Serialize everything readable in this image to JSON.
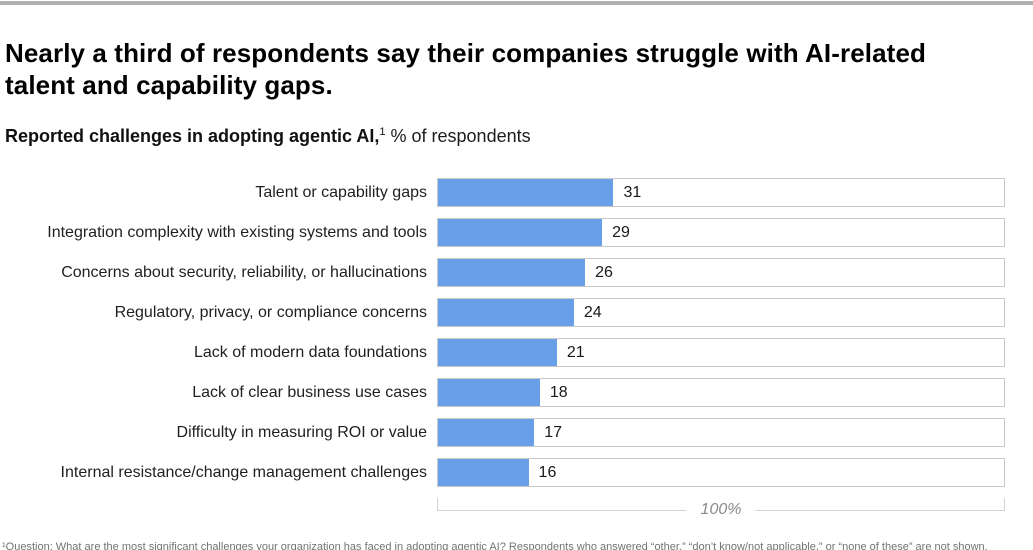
{
  "page": {
    "title": "Nearly a third of respondents say their companies struggle with AI-related talent and capability gaps.",
    "subtitle_bold": "Reported challenges in adopting agentic AI,",
    "subtitle_sup": "1",
    "subtitle_rest": "% of respondents",
    "footnote": "¹Question: What are the most significant challenges your organization has faced in adopting agentic AI? Respondents who answered “other,” “don’t know/not applicable,” or “none of these” are not shown."
  },
  "chart_data": {
    "type": "bar",
    "orientation": "horizontal",
    "title": "Reported challenges in adopting agentic AI, % of respondents",
    "categories": [
      "Talent or capability gaps",
      "Integration complexity with existing systems and tools",
      "Concerns about security, reliability, or hallucinations",
      "Regulatory, privacy, or compliance concerns",
      "Lack of modern data foundations",
      "Lack of clear business use cases",
      "Difficulty in measuring ROI or value",
      "Internal resistance/change management challenges"
    ],
    "values": [
      31,
      29,
      26,
      24,
      21,
      18,
      17,
      16
    ],
    "xlim": [
      0,
      100
    ],
    "x_max_label": "100%",
    "value_labels_shown": true,
    "grid": false,
    "legend": false,
    "bar_color": "#699fe8",
    "track_border_color": "#c9c9c9",
    "top_rule_color": "#b1b1b1"
  }
}
